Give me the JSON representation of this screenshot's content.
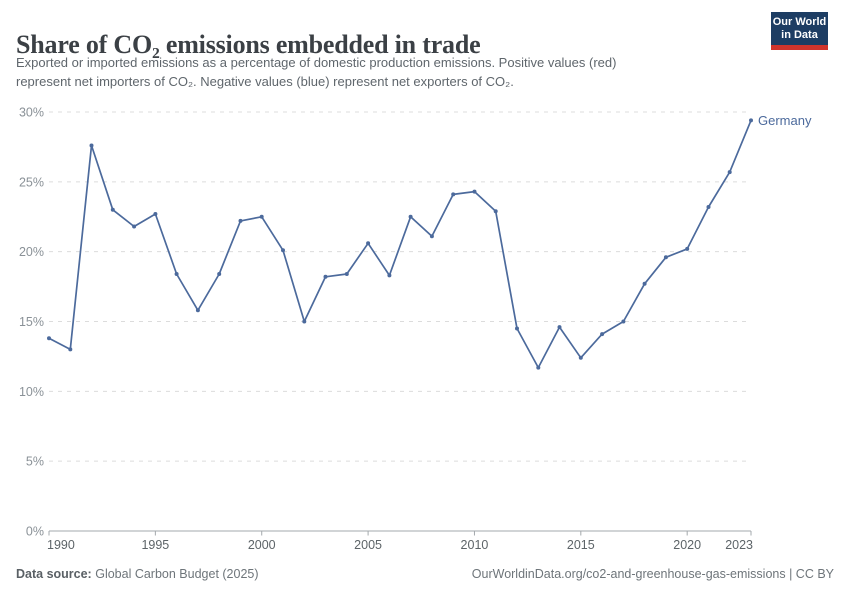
{
  "header": {
    "title": "Share of CO₂ emissions embedded in trade",
    "subtitle_lines": [
      "Exported or imported emissions as a percentage of domestic production emissions. Positive values (red)",
      "represent net importers of CO₂. Negative values (blue) represent net exporters of CO₂."
    ],
    "logo": {
      "line1": "Our World",
      "line2": "in Data"
    }
  },
  "chart_data": {
    "type": "line",
    "title": "Share of CO₂ emissions embedded in trade",
    "x": [
      1990,
      1991,
      1992,
      1993,
      1994,
      1995,
      1996,
      1997,
      1998,
      1999,
      2000,
      2001,
      2002,
      2003,
      2004,
      2005,
      2006,
      2007,
      2008,
      2009,
      2010,
      2011,
      2012,
      2013,
      2014,
      2015,
      2016,
      2017,
      2018,
      2019,
      2020,
      2021,
      2022,
      2023
    ],
    "series": [
      {
        "name": "Germany",
        "color": "#4c6a9c",
        "values": [
          13.8,
          13.0,
          27.6,
          23.0,
          21.8,
          22.7,
          18.4,
          15.8,
          18.4,
          22.2,
          22.5,
          20.1,
          15.0,
          18.2,
          18.4,
          20.6,
          18.3,
          22.5,
          21.1,
          24.1,
          24.3,
          22.9,
          14.5,
          11.7,
          14.6,
          12.4,
          14.1,
          15.0,
          17.7,
          19.6,
          20.2,
          23.2,
          25.7,
          29.4
        ]
      }
    ],
    "xlim": [
      1990,
      2023
    ],
    "ylim": [
      0,
      30
    ],
    "yticks": [
      0,
      5,
      10,
      15,
      20,
      25,
      30
    ],
    "ytick_suffix": "%",
    "xticks": [
      1990,
      1995,
      2000,
      2005,
      2010,
      2015,
      2020,
      2023
    ],
    "grid": "horizontal-dashed",
    "legend": "end-of-line-label",
    "end_label": "Germany"
  },
  "footer": {
    "source_label": "Data source:",
    "source_value": "Global Carbon Budget (2025)",
    "rights": "OurWorldinData.org/co2-and-greenhouse-gas-emissions | CC BY"
  },
  "colors": {
    "line": "#4c6a9c",
    "logo_bg": "#1d3d63",
    "logo_accent": "#d0342c",
    "title": "#3b4045",
    "subtitle": "#5f666c",
    "grid": "#dcdcdc",
    "axis": "#a3a8ac",
    "ytick_label": "#8a9197",
    "xtick_label": "#5d6468",
    "footer": "#6e757a"
  }
}
